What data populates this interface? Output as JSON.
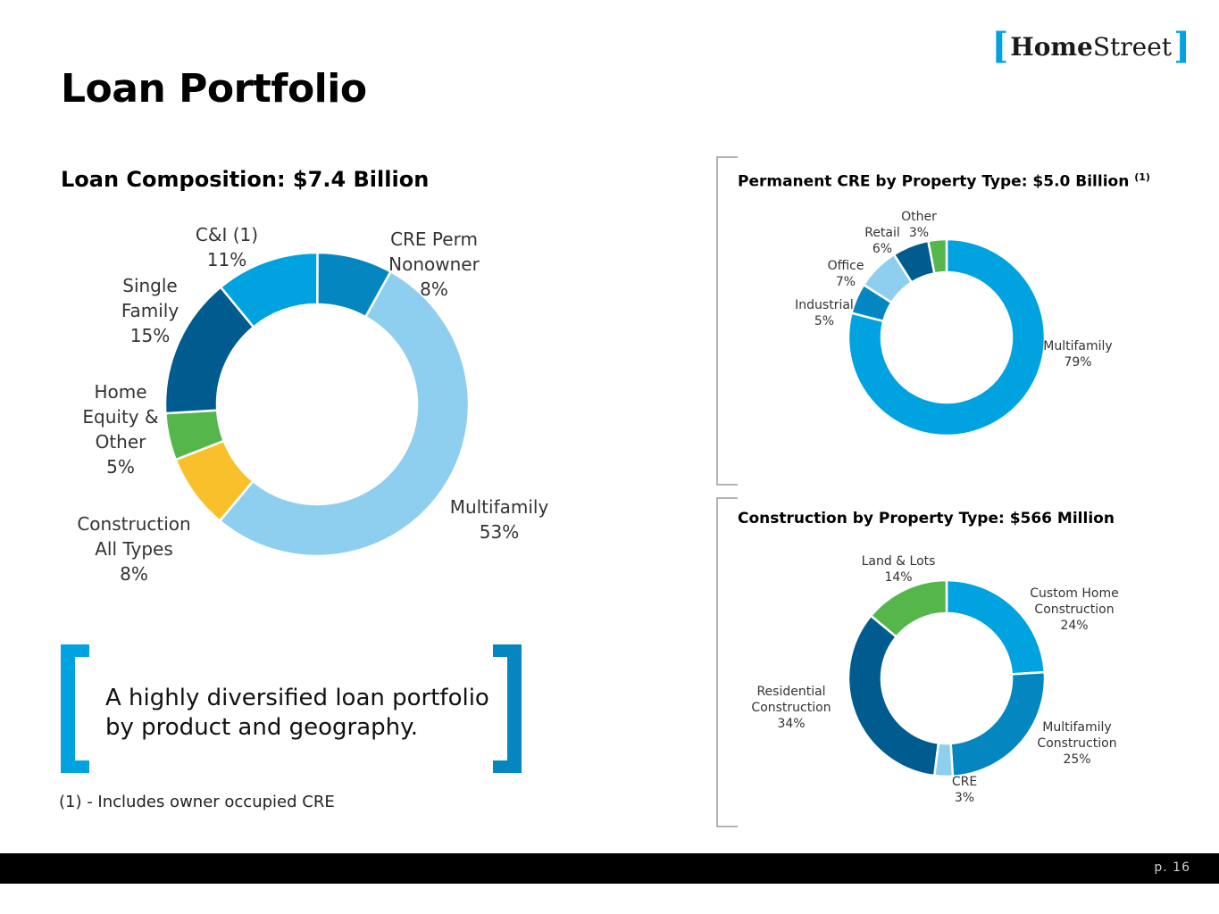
{
  "page": {
    "title": "Loan Portfolio",
    "page_number": "p. 16",
    "footnote": "(1) - Includes owner occupied CRE",
    "quote": "A highly diversified loan portfolio by product and geography."
  },
  "logo": {
    "home": "Home",
    "street": "Street",
    "bracket_open": "[",
    "bracket_close": "]"
  },
  "colors": {
    "multifamily": "#8ecfef",
    "construction": "#f8c12c",
    "home_equity": "#55b74b",
    "single_family": "#005b8f",
    "ci": "#00a3e0",
    "cre_perm": "#0487c0",
    "bracket": "#00a3e0",
    "bracket_dark": "#0487c0",
    "section_bracket": "#9a9a9a"
  },
  "chart_data": [
    {
      "type": "pie",
      "title": "Loan Composition: $7.4 Billion",
      "categories": [
        "Multifamily",
        "Construction All Types",
        "Home Equity & Other",
        "Single Family",
        "C&I (1)",
        "CRE Perm Nonowner"
      ],
      "values": [
        53,
        8,
        5,
        15,
        11,
        8
      ],
      "unit": "%",
      "labels": [
        [
          "Multifamily",
          "53%"
        ],
        [
          "Construction",
          "All Types",
          "8%"
        ],
        [
          "Home",
          "Equity &",
          "Other",
          "5%"
        ],
        [
          "Single",
          "Family",
          "15%"
        ],
        [
          "C&I (1)",
          "11%"
        ],
        [
          "CRE Perm",
          "Nonowner",
          "8%"
        ]
      ],
      "colors": [
        "#8ecfef",
        "#f8c12c",
        "#55b74b",
        "#005b8f",
        "#00a3e0",
        "#0487c0"
      ]
    },
    {
      "type": "pie",
      "title": "Permanent CRE by Property Type: $5.0 Billion",
      "title_note": "(1)",
      "categories": [
        "Multifamily",
        "Industrial",
        "Office",
        "Retail",
        "Other"
      ],
      "values": [
        79,
        5,
        7,
        6,
        3
      ],
      "unit": "%",
      "labels": [
        [
          "Multifamily",
          "79%"
        ],
        [
          "Industrial",
          "5%"
        ],
        [
          "Office",
          "7%"
        ],
        [
          "Retail",
          "6%"
        ],
        [
          "Other",
          "3%"
        ]
      ],
      "colors": [
        "#00a3e0",
        "#0487c0",
        "#8ecfef",
        "#005b8f",
        "#55b74b"
      ]
    },
    {
      "type": "pie",
      "title": "Construction by Property Type: $566 Million",
      "categories": [
        "Custom Home Construction",
        "Multifamily Construction",
        "CRE",
        "Residential Construction",
        "Land & Lots"
      ],
      "values": [
        24,
        25,
        3,
        34,
        14
      ],
      "unit": "%",
      "labels": [
        [
          "Custom Home",
          "Construction",
          "24%"
        ],
        [
          "Multifamily",
          "Construction",
          "25%"
        ],
        [
          "CRE",
          "3%"
        ],
        [
          "Residential",
          "Construction",
          "34%"
        ],
        [
          "Land & Lots",
          "14%"
        ]
      ],
      "colors": [
        "#00a3e0",
        "#0487c0",
        "#8ecfef",
        "#005b8f",
        "#55b74b"
      ]
    }
  ]
}
